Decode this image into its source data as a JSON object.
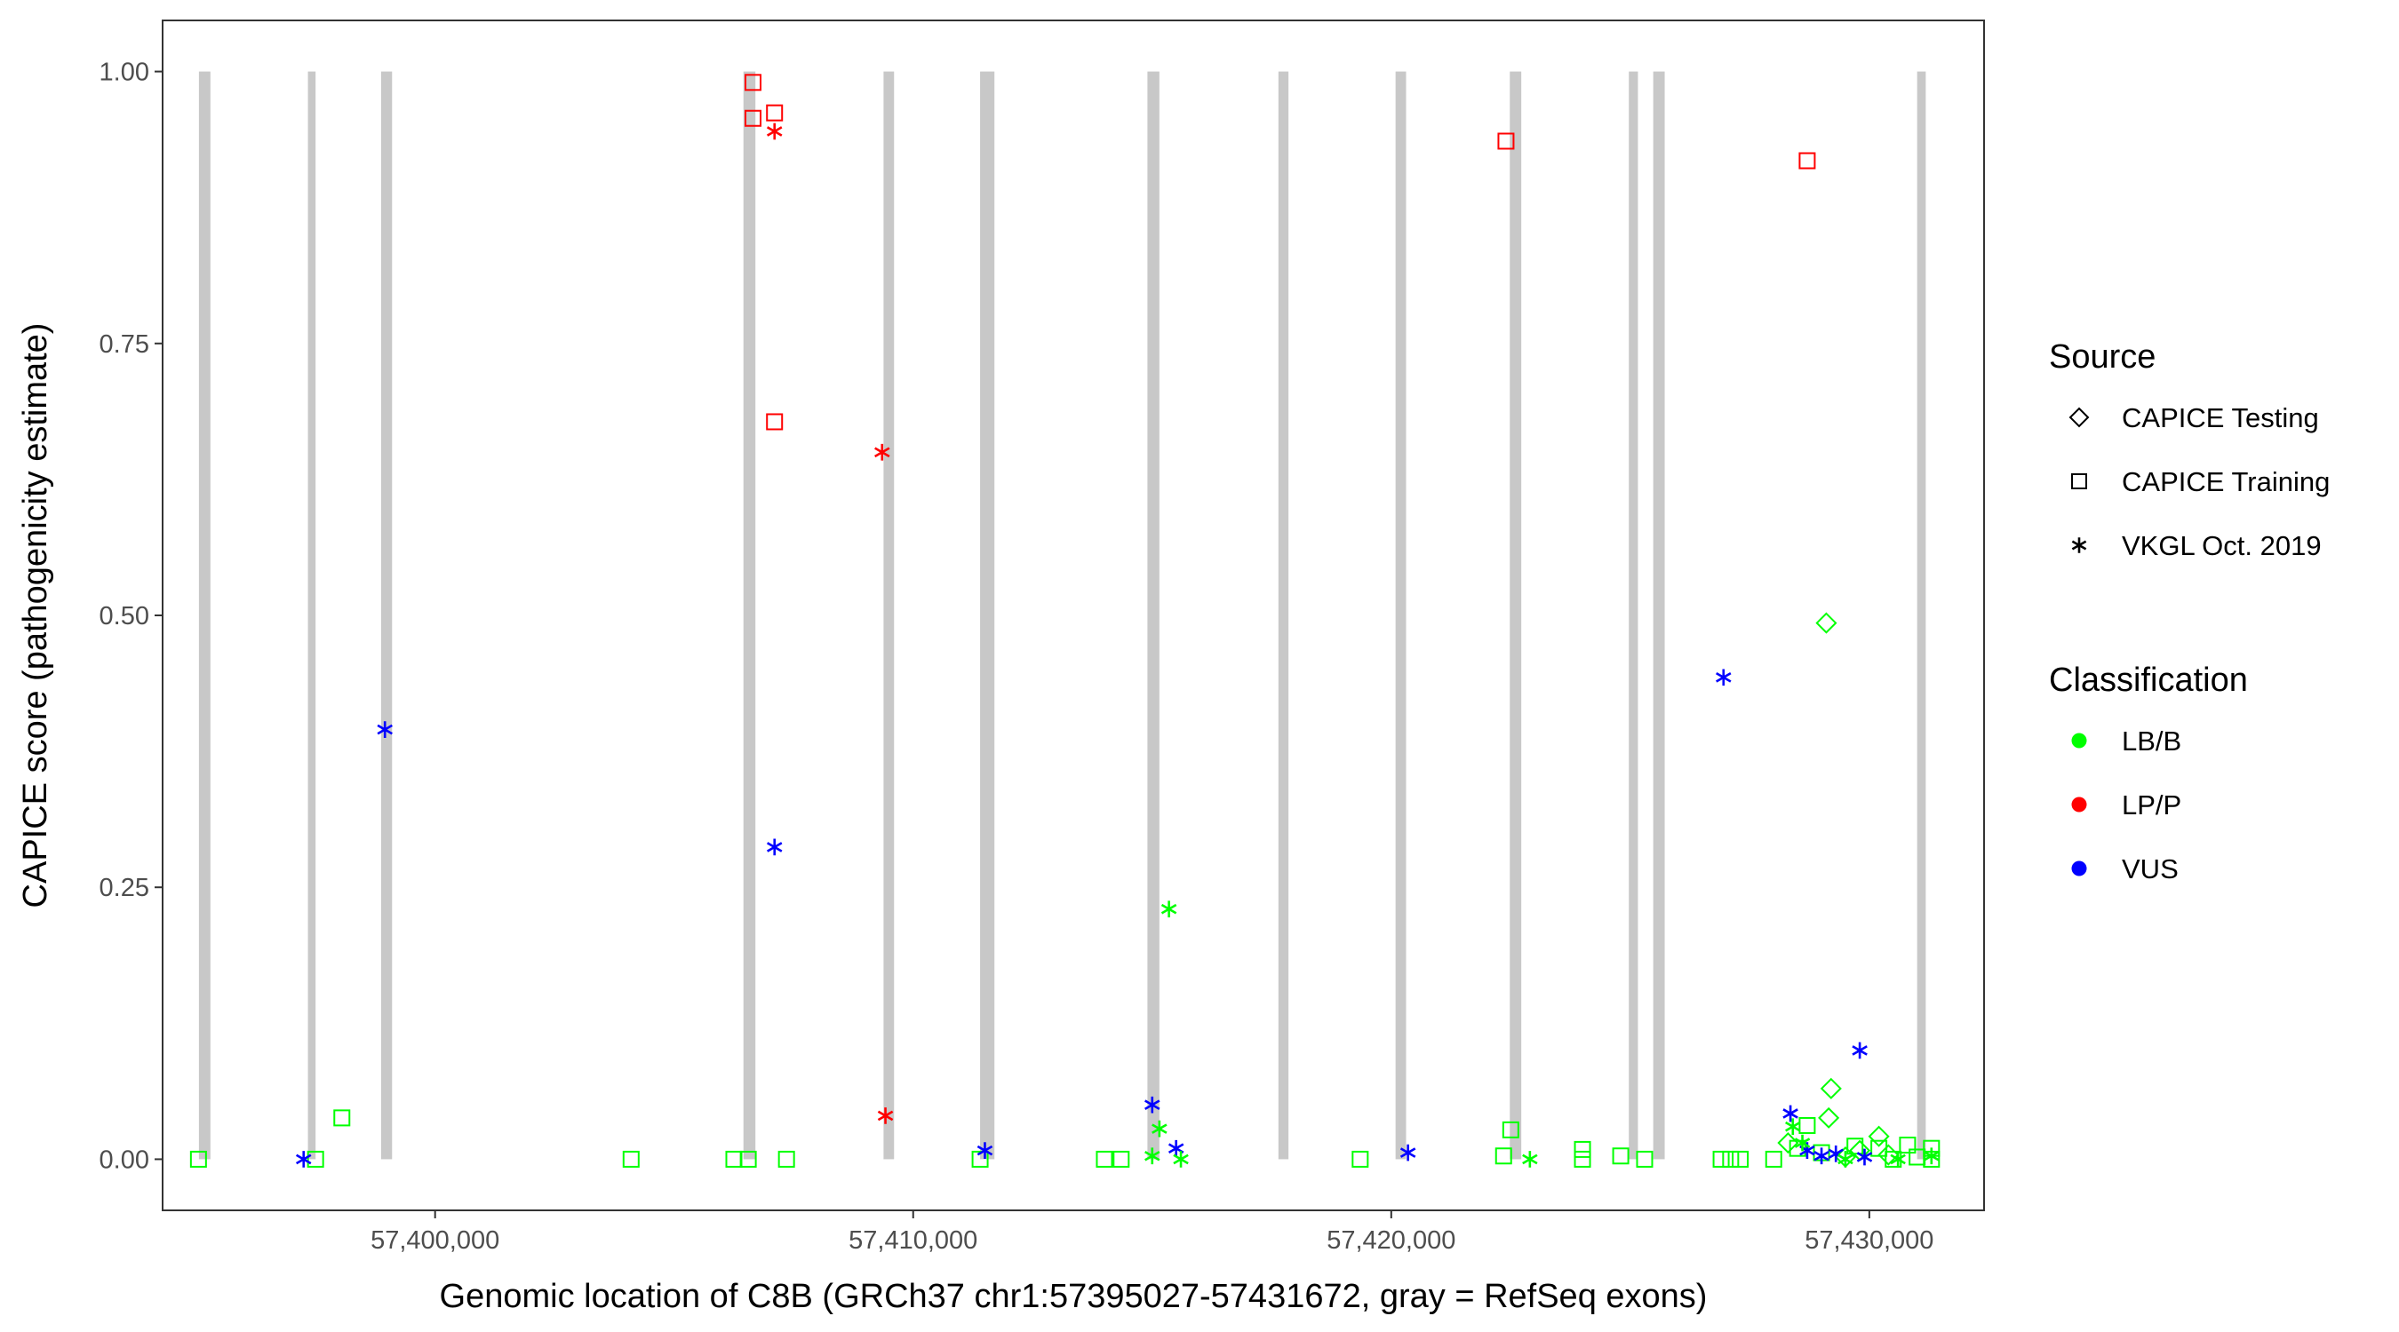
{
  "chart_data": {
    "type": "scatter",
    "title": "",
    "xlabel": "Genomic location of C8B (GRCh37 chr1:57395027-57431672, gray = RefSeq exons)",
    "ylabel": "CAPICE score (pathogenicity estimate)",
    "xlim": [
      57394300,
      57432400
    ],
    "ylim": [
      -0.047,
      1.047
    ],
    "x_ticks": [
      57400000,
      57410000,
      57420000,
      57430000
    ],
    "x_tick_labels": [
      "57,400,000",
      "57,410,000",
      "57,420,000",
      "57,430,000"
    ],
    "y_ticks": [
      0,
      0.25,
      0.5,
      0.75,
      1.0
    ],
    "y_tick_labels": [
      "0.00",
      "0.25",
      "0.50",
      "0.75",
      "1.00"
    ],
    "grid": false,
    "exons": [
      {
        "start": 57395060,
        "end": 57395300
      },
      {
        "start": 57397340,
        "end": 57397500
      },
      {
        "start": 57398870,
        "end": 57399100
      },
      {
        "start": 57406450,
        "end": 57406700
      },
      {
        "start": 57409380,
        "end": 57409600
      },
      {
        "start": 57411400,
        "end": 57411700
      },
      {
        "start": 57414900,
        "end": 57415150
      },
      {
        "start": 57417640,
        "end": 57417850
      },
      {
        "start": 57420090,
        "end": 57420310
      },
      {
        "start": 57422480,
        "end": 57422720
      },
      {
        "start": 57424970,
        "end": 57425160
      },
      {
        "start": 57425480,
        "end": 57425720
      },
      {
        "start": 57431000,
        "end": 57431180
      }
    ],
    "legend": {
      "position": "right",
      "shape_title": "Source",
      "shape_entries": [
        {
          "label": "CAPICE Testing",
          "shape": "diamond"
        },
        {
          "label": "CAPICE Training",
          "shape": "square"
        },
        {
          "label": "VKGL Oct. 2019",
          "shape": "asterisk"
        }
      ],
      "color_title": "Classification",
      "color_entries": [
        {
          "label": "LB/B",
          "color": "#00ff00"
        },
        {
          "label": "LP/P",
          "color": "#ff0000"
        },
        {
          "label": "VUS",
          "color": "#0000ff"
        }
      ]
    },
    "colors": {
      "LB/B": "#00ff00",
      "LP/P": "#ff0000",
      "VUS": "#0000ff",
      "exon": "#c8c8c8"
    },
    "series": [
      {
        "name": "CAPICE Testing",
        "shape": "diamond",
        "points": [
          {
            "x": 57429100,
            "y": 0.493,
            "class": "LB/B"
          },
          {
            "x": 57429200,
            "y": 0.065,
            "class": "LB/B"
          },
          {
            "x": 57429150,
            "y": 0.038,
            "class": "LB/B"
          },
          {
            "x": 57430200,
            "y": 0.021,
            "class": "LB/B"
          },
          {
            "x": 57428300,
            "y": 0.015,
            "class": "LB/B"
          },
          {
            "x": 57429800,
            "y": 0.008,
            "class": "LB/B"
          },
          {
            "x": 57430400,
            "y": 0.004,
            "class": "LB/B"
          },
          {
            "x": 57429500,
            "y": 0.002,
            "class": "LB/B"
          }
        ]
      },
      {
        "name": "CAPICE Training",
        "shape": "square",
        "points": [
          {
            "x": 57406650,
            "y": 0.99,
            "class": "LP/P"
          },
          {
            "x": 57406650,
            "y": 0.957,
            "class": "LP/P"
          },
          {
            "x": 57407100,
            "y": 0.962,
            "class": "LP/P"
          },
          {
            "x": 57407100,
            "y": 0.678,
            "class": "LP/P"
          },
          {
            "x": 57422400,
            "y": 0.936,
            "class": "LP/P"
          },
          {
            "x": 57428700,
            "y": 0.918,
            "class": "LP/P"
          },
          {
            "x": 57395050,
            "y": 0.0,
            "class": "LB/B"
          },
          {
            "x": 57397500,
            "y": 0.0,
            "class": "LB/B"
          },
          {
            "x": 57398050,
            "y": 0.038,
            "class": "LB/B"
          },
          {
            "x": 57404100,
            "y": 0.0,
            "class": "LB/B"
          },
          {
            "x": 57406250,
            "y": 0.0,
            "class": "LB/B"
          },
          {
            "x": 57406550,
            "y": 0.0,
            "class": "LB/B"
          },
          {
            "x": 57407350,
            "y": 0.0,
            "class": "LB/B"
          },
          {
            "x": 57411400,
            "y": 0.0,
            "class": "LB/B"
          },
          {
            "x": 57414000,
            "y": 0.0,
            "class": "LB/B"
          },
          {
            "x": 57414350,
            "y": 0.0,
            "class": "LB/B"
          },
          {
            "x": 57419350,
            "y": 0.0,
            "class": "LB/B"
          },
          {
            "x": 57422500,
            "y": 0.027,
            "class": "LB/B"
          },
          {
            "x": 57422350,
            "y": 0.003,
            "class": "LB/B"
          },
          {
            "x": 57424000,
            "y": 0.009,
            "class": "LB/B"
          },
          {
            "x": 57424000,
            "y": 0.0,
            "class": "LB/B"
          },
          {
            "x": 57424800,
            "y": 0.003,
            "class": "LB/B"
          },
          {
            "x": 57425300,
            "y": 0.0,
            "class": "LB/B"
          },
          {
            "x": 57426900,
            "y": 0.0,
            "class": "LB/B"
          },
          {
            "x": 57427100,
            "y": 0.0,
            "class": "LB/B"
          },
          {
            "x": 57427300,
            "y": 0.0,
            "class": "LB/B"
          },
          {
            "x": 57428000,
            "y": 0.0,
            "class": "LB/B"
          },
          {
            "x": 57428700,
            "y": 0.031,
            "class": "LB/B"
          },
          {
            "x": 57428500,
            "y": 0.01,
            "class": "LB/B"
          },
          {
            "x": 57429000,
            "y": 0.006,
            "class": "LB/B"
          },
          {
            "x": 57429700,
            "y": 0.012,
            "class": "LB/B"
          },
          {
            "x": 57430200,
            "y": 0.01,
            "class": "LB/B"
          },
          {
            "x": 57430800,
            "y": 0.013,
            "class": "LB/B"
          },
          {
            "x": 57431000,
            "y": 0.002,
            "class": "LB/B"
          },
          {
            "x": 57431300,
            "y": 0.01,
            "class": "LB/B"
          },
          {
            "x": 57431300,
            "y": 0.0,
            "class": "LB/B"
          },
          {
            "x": 57430500,
            "y": 0.0,
            "class": "LB/B"
          }
        ]
      },
      {
        "name": "VKGL Oct. 2019",
        "shape": "asterisk",
        "points": [
          {
            "x": 57407100,
            "y": 0.945,
            "class": "LP/P"
          },
          {
            "x": 57409350,
            "y": 0.65,
            "class": "LP/P"
          },
          {
            "x": 57409420,
            "y": 0.04,
            "class": "LP/P"
          },
          {
            "x": 57398950,
            "y": 0.395,
            "class": "VUS"
          },
          {
            "x": 57397250,
            "y": 0.0,
            "class": "VUS"
          },
          {
            "x": 57407100,
            "y": 0.287,
            "class": "VUS"
          },
          {
            "x": 57411500,
            "y": 0.008,
            "class": "VUS"
          },
          {
            "x": 57415000,
            "y": 0.05,
            "class": "VUS"
          },
          {
            "x": 57415500,
            "y": 0.01,
            "class": "VUS"
          },
          {
            "x": 57420350,
            "y": 0.006,
            "class": "VUS"
          },
          {
            "x": 57426950,
            "y": 0.443,
            "class": "VUS"
          },
          {
            "x": 57428350,
            "y": 0.042,
            "class": "VUS"
          },
          {
            "x": 57429800,
            "y": 0.1,
            "class": "VUS"
          },
          {
            "x": 57428700,
            "y": 0.008,
            "class": "VUS"
          },
          {
            "x": 57429000,
            "y": 0.003,
            "class": "VUS"
          },
          {
            "x": 57429300,
            "y": 0.005,
            "class": "VUS"
          },
          {
            "x": 57429900,
            "y": 0.002,
            "class": "VUS"
          },
          {
            "x": 57415350,
            "y": 0.23,
            "class": "LB/B"
          },
          {
            "x": 57415150,
            "y": 0.028,
            "class": "LB/B"
          },
          {
            "x": 57415000,
            "y": 0.003,
            "class": "LB/B"
          },
          {
            "x": 57415600,
            "y": 0.0,
            "class": "LB/B"
          },
          {
            "x": 57422900,
            "y": 0.0,
            "class": "LB/B"
          },
          {
            "x": 57428400,
            "y": 0.03,
            "class": "LB/B"
          },
          {
            "x": 57428600,
            "y": 0.015,
            "class": "LB/B"
          },
          {
            "x": 57429500,
            "y": 0.0,
            "class": "LB/B"
          },
          {
            "x": 57430600,
            "y": 0.0,
            "class": "LB/B"
          },
          {
            "x": 57431300,
            "y": 0.003,
            "class": "LB/B"
          }
        ]
      }
    ]
  }
}
